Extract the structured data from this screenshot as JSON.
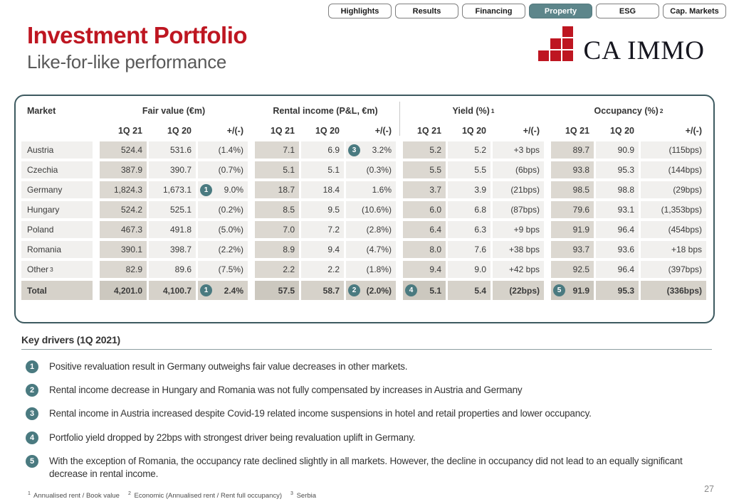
{
  "tabs": [
    {
      "label": "Highlights",
      "active": false
    },
    {
      "label": "Results",
      "active": false
    },
    {
      "label": "Financing",
      "active": false
    },
    {
      "label": "Property",
      "active": true
    },
    {
      "label": "ESG",
      "active": false
    },
    {
      "label": "Cap. Markets",
      "active": false
    }
  ],
  "header": {
    "title": "Investment Portfolio",
    "subtitle": "Like-for-like performance",
    "logo_text": "CA IMMO"
  },
  "table": {
    "market_header": "Market",
    "groups": [
      {
        "label": "Fair value (€m)",
        "sup": ""
      },
      {
        "label": "Rental income (P&L, €m)",
        "sup": ""
      },
      {
        "label": "Yield (%)",
        "sup": "1"
      },
      {
        "label": "Occupancy (%)",
        "sup": "2"
      }
    ],
    "subheaders": [
      "1Q 21",
      "1Q 20",
      "+/(-)"
    ],
    "rows": [
      {
        "market": "Austria",
        "market_sup": "",
        "cells": [
          "524.4",
          "531.6",
          "(1.4%)",
          "7.1",
          "6.9",
          {
            "v": "3.2%",
            "badge": "3"
          },
          "5.2",
          "5.2",
          "+3 bps",
          "89.7",
          "90.9",
          "(115bps)"
        ]
      },
      {
        "market": "Czechia",
        "market_sup": "",
        "cells": [
          "387.9",
          "390.7",
          "(0.7%)",
          "5.1",
          "5.1",
          "(0.3%)",
          "5.5",
          "5.5",
          "(6bps)",
          "93.8",
          "95.3",
          "(144bps)"
        ]
      },
      {
        "market": "Germany",
        "market_sup": "",
        "cells": [
          "1,824.3",
          "1,673.1",
          {
            "v": "9.0%",
            "badge": "1"
          },
          "18.7",
          "18.4",
          "1.6%",
          "3.7",
          "3.9",
          "(21bps)",
          "98.5",
          "98.8",
          "(29bps)"
        ]
      },
      {
        "market": "Hungary",
        "market_sup": "",
        "cells": [
          "524.2",
          "525.1",
          "(0.2%)",
          "8.5",
          "9.5",
          "(10.6%)",
          "6.0",
          "6.8",
          "(87bps)",
          "79.6",
          "93.1",
          "(1,353bps)"
        ]
      },
      {
        "market": "Poland",
        "market_sup": "",
        "cells": [
          "467.3",
          "491.8",
          "(5.0%)",
          "7.0",
          "7.2",
          "(2.8%)",
          "6.4",
          "6.3",
          "+9 bps",
          "91.9",
          "96.4",
          "(454bps)"
        ]
      },
      {
        "market": "Romania",
        "market_sup": "",
        "cells": [
          "390.1",
          "398.7",
          "(2.2%)",
          "8.9",
          "9.4",
          "(4.7%)",
          "8.0",
          "7.6",
          "+38 bps",
          "93.7",
          "93.6",
          "+18 bps"
        ]
      },
      {
        "market": "Other",
        "market_sup": "3",
        "cells": [
          "82.9",
          "89.6",
          "(7.5%)",
          "2.2",
          "2.2",
          "(1.8%)",
          "9.4",
          "9.0",
          "+42 bps",
          "92.5",
          "96.4",
          "(397bps)"
        ]
      }
    ],
    "total": {
      "market": "Total",
      "cells": [
        "4,201.0",
        "4,100.7",
        {
          "v": "2.4%",
          "badge": "1"
        },
        "57.5",
        "58.7",
        {
          "v": "(2.0%)",
          "badge": "2"
        },
        {
          "v": "5.1",
          "badge": "4"
        },
        "5.4",
        "(22bps)",
        {
          "v": "91.9",
          "badge": "5"
        },
        "95.3",
        "(336bps)"
      ]
    }
  },
  "key_drivers": {
    "title": "Key drivers (1Q 2021)",
    "items": [
      {
        "num": "1",
        "text": "Positive revaluation result in Germany outweighs fair value decreases in other markets."
      },
      {
        "num": "2",
        "text": "Rental income decrease in Hungary and Romania was not fully compensated by increases in Austria and Germany"
      },
      {
        "num": "3",
        "text": "Rental income in Austria increased despite Covid-19 related income suspensions in hotel and retail properties and lower occupancy."
      },
      {
        "num": "4",
        "text": "Portfolio yield dropped by 22bps with strongest driver being revaluation uplift in Germany."
      },
      {
        "num": "5",
        "text": "With the exception of Romania, the occupancy rate declined slightly in all markets. However, the decline in occupancy did not lead to an equally significant decrease in rental income."
      }
    ]
  },
  "footnotes": [
    {
      "sup": "1",
      "text": "Annualised rent / Book value"
    },
    {
      "sup": "2",
      "text": "Economic (Annualised rent / Rent full occupancy)"
    },
    {
      "sup": "3",
      "text": "Serbia"
    }
  ],
  "page_number": "27",
  "colors": {
    "accent_red": "#be1621",
    "badge_teal": "#4a7a80",
    "tab_active_bg": "#5d868b",
    "table_border": "#3d5a60",
    "row_bg": "#f1f0ee",
    "row_bg_highlight": "#dcd8d1",
    "total_row_bg": "#d6d2ca"
  }
}
